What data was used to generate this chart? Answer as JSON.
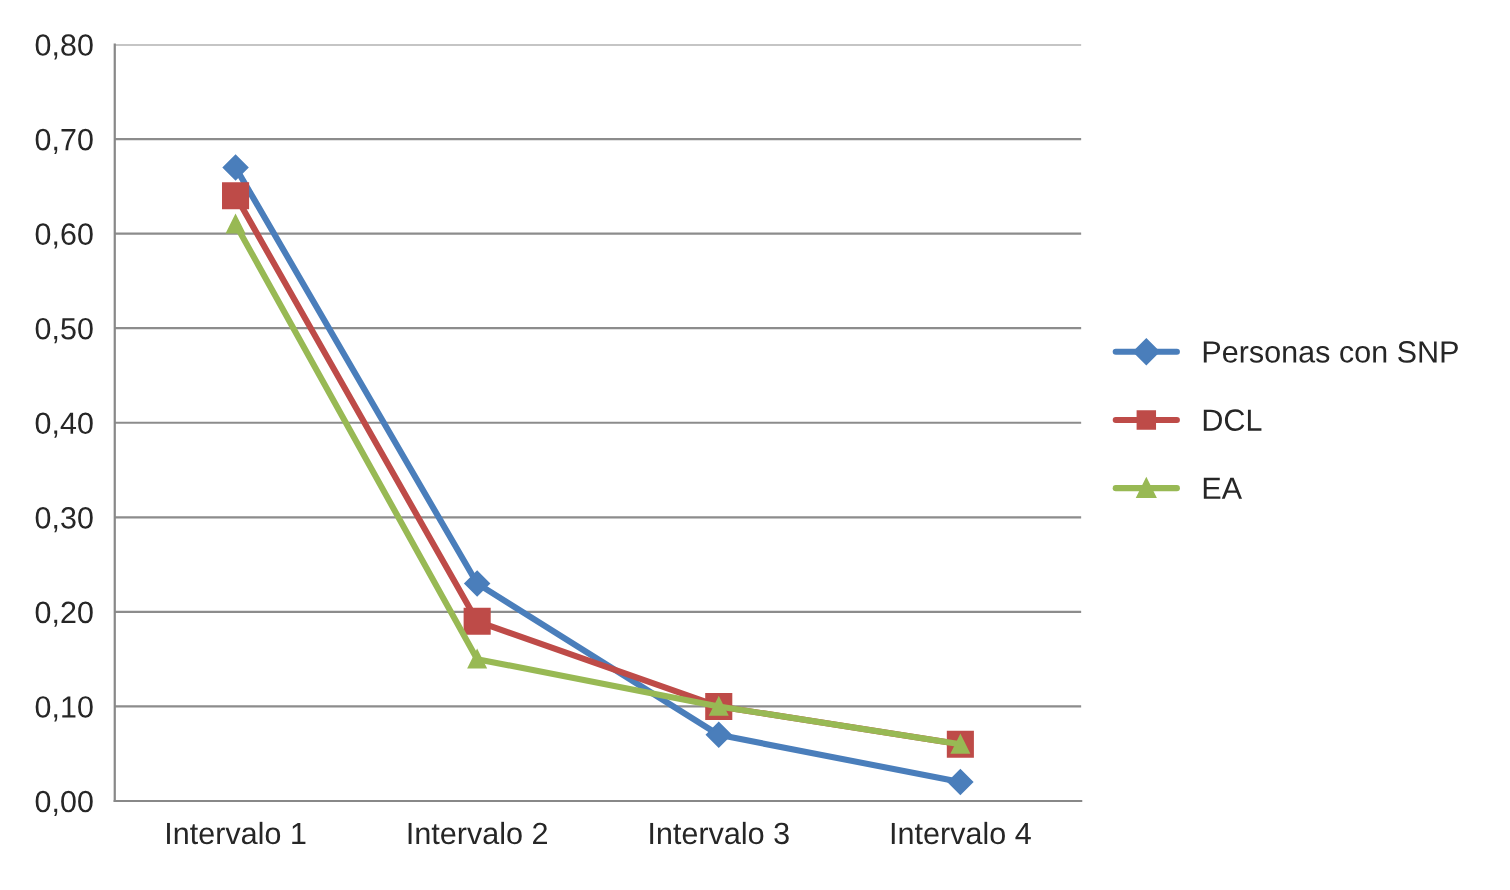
{
  "chart_data": {
    "type": "line",
    "categories": [
      "Intervalo 1",
      "Intervalo 2",
      "Intervalo 3",
      "Intervalo 4"
    ],
    "series": [
      {
        "name": "Personas con SNP",
        "color": "#4a7ebb",
        "marker": "diamond",
        "values": [
          0.67,
          0.23,
          0.07,
          0.02
        ]
      },
      {
        "name": "DCL",
        "color": "#be4b48",
        "marker": "square",
        "values": [
          0.64,
          0.19,
          0.1,
          0.06
        ]
      },
      {
        "name": "EA",
        "color": "#98b954",
        "marker": "triangle",
        "values": [
          0.61,
          0.15,
          0.1,
          0.06
        ]
      }
    ],
    "ylim": [
      0,
      0.8
    ],
    "yticks": [
      {
        "value": 0,
        "label": "0,00"
      },
      {
        "value": 0.1,
        "label": "0,10"
      },
      {
        "value": 0.2,
        "label": "0,20"
      },
      {
        "value": 0.3,
        "label": "0,30"
      },
      {
        "value": 0.4,
        "label": "0,40"
      },
      {
        "value": 0.5,
        "label": "0,50"
      },
      {
        "value": 0.6,
        "label": "0,60"
      },
      {
        "value": 0.7,
        "label": "0,70"
      },
      {
        "value": 0.8,
        "label": "0,80"
      }
    ],
    "grid": "y",
    "legend": "right",
    "line_style": "solid"
  }
}
